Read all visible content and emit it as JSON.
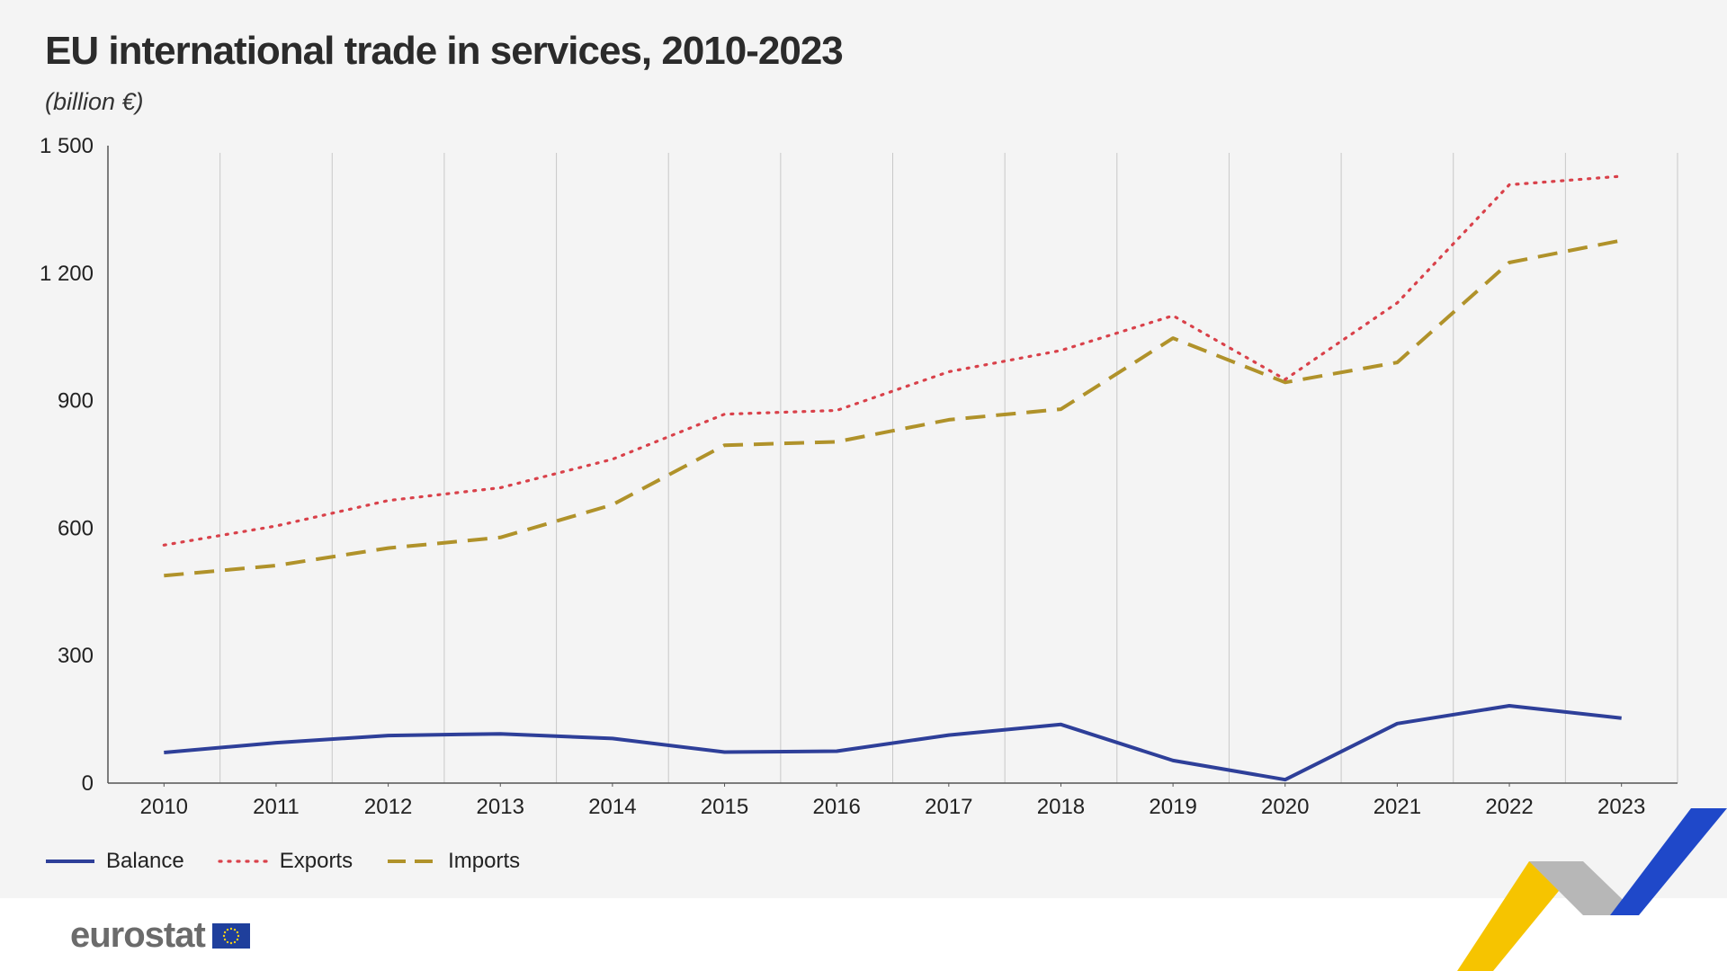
{
  "title": "EU international trade in services, 2010-2023",
  "subtitle": "(billion €)",
  "brand": {
    "name": "eurostat"
  },
  "colors": {
    "background": "#f4f4f4",
    "balance": "#2e3f99",
    "exports": "#d9414a",
    "imports": "#b0922a",
    "eu_flag": "#1f3f9c",
    "eu_stars": "#f7d117"
  },
  "chart_data": {
    "type": "line",
    "title": "EU international trade in services, 2010-2023",
    "subtitle": "(billion €)",
    "x": [
      "2010",
      "2011",
      "2012",
      "2013",
      "2014",
      "2015",
      "2016",
      "2017",
      "2018",
      "2019",
      "2020",
      "2021",
      "2022",
      "2023"
    ],
    "yticks": [
      "0",
      "300",
      "600",
      "900",
      "1 200",
      "1 500"
    ],
    "ylim": [
      0,
      1500
    ],
    "grid": "vertical",
    "legend": "bottom-left",
    "series": [
      {
        "name": "Balance",
        "key": "balance",
        "style": "solid",
        "values": [
          72,
          95,
          112,
          116,
          105,
          73,
          75,
          113,
          138,
          53,
          8,
          140,
          182,
          153
        ]
      },
      {
        "name": "Exports",
        "key": "exports",
        "style": "dotted",
        "values": [
          560,
          605,
          665,
          695,
          762,
          868,
          877,
          968,
          1018,
          1100,
          950,
          1130,
          1408,
          1428
        ]
      },
      {
        "name": "Imports",
        "key": "imports",
        "style": "dashed",
        "values": [
          488,
          512,
          553,
          578,
          655,
          795,
          803,
          855,
          880,
          1047,
          943,
          990,
          1225,
          1277
        ]
      }
    ]
  }
}
